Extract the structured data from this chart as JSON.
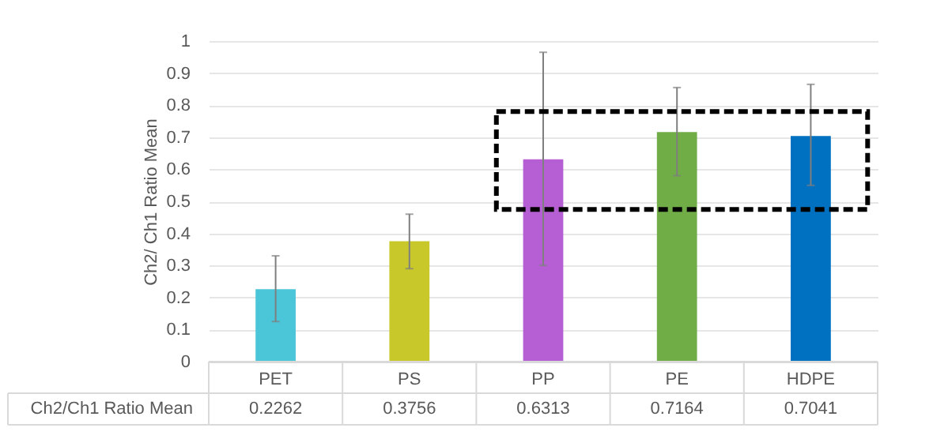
{
  "chart_data": {
    "type": "bar",
    "ylabel": "Ch2/ Ch1 Ratio Mean",
    "categories": [
      "PET",
      "PS",
      "PP",
      "PE",
      "HDPE"
    ],
    "series": [
      {
        "name": "Ch2/Ch1 Ratio Mean",
        "values": [
          0.2262,
          0.3756,
          0.6313,
          0.7164,
          0.7041
        ],
        "colors": [
          "#4bc6d8",
          "#c8c82a",
          "#b65fd4",
          "#70ad47",
          "#0070c0"
        ],
        "errors": [
          [
            0.125,
            0.33
          ],
          [
            0.29,
            0.46
          ],
          [
            0.3,
            0.965
          ],
          [
            0.58,
            0.855
          ],
          [
            0.55,
            0.865
          ]
        ]
      }
    ],
    "ylim": [
      0,
      1
    ],
    "yticks": [
      0,
      0.1,
      0.2,
      0.3,
      0.4,
      0.5,
      0.6,
      0.7,
      0.8,
      0.9,
      1
    ],
    "grid": "y",
    "data_labels": true
  }
}
